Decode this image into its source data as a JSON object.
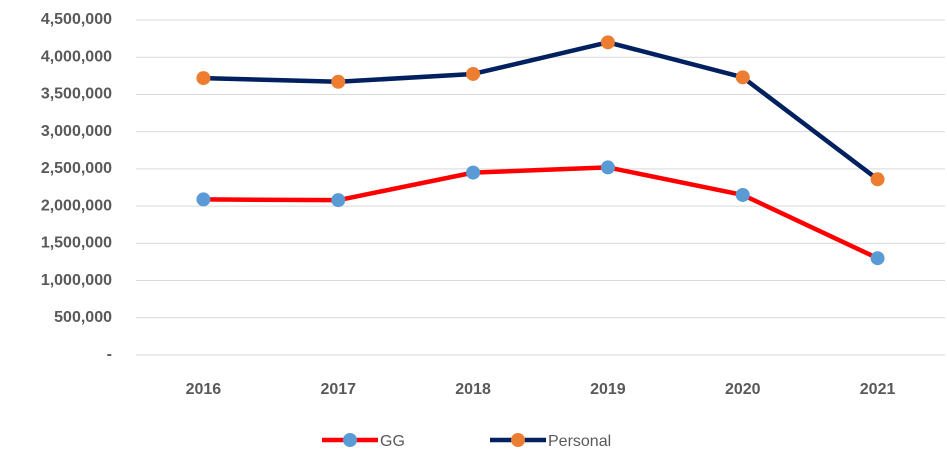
{
  "chart_data": {
    "type": "line",
    "categories": [
      "2016",
      "2017",
      "2018",
      "2019",
      "2020",
      "2021"
    ],
    "series": [
      {
        "name": "GG",
        "color": "#ff0000",
        "marker_color": "#5b9bd5",
        "values": [
          2090000,
          2080000,
          2450000,
          2520000,
          2150000,
          1300000
        ]
      },
      {
        "name": "Personal",
        "color": "#002060",
        "marker_color": "#ed7d31",
        "values": [
          3720000,
          3670000,
          3775000,
          4200000,
          3730000,
          2360000
        ]
      }
    ],
    "ylim": [
      0,
      4500000
    ],
    "yticks": [
      {
        "value": 0,
        "label": "-"
      },
      {
        "value": 500000,
        "label": "500,000"
      },
      {
        "value": 1000000,
        "label": "1,000,000"
      },
      {
        "value": 1500000,
        "label": "1,500,000"
      },
      {
        "value": 2000000,
        "label": "2,000,000"
      },
      {
        "value": 2500000,
        "label": "2,500,000"
      },
      {
        "value": 3000000,
        "label": "3,000,000"
      },
      {
        "value": 3500000,
        "label": "3,500,000"
      },
      {
        "value": 4000000,
        "label": "4,000,000"
      },
      {
        "value": 4500000,
        "label": "4,500,000"
      }
    ],
    "grid": true,
    "legend": "bottom"
  }
}
